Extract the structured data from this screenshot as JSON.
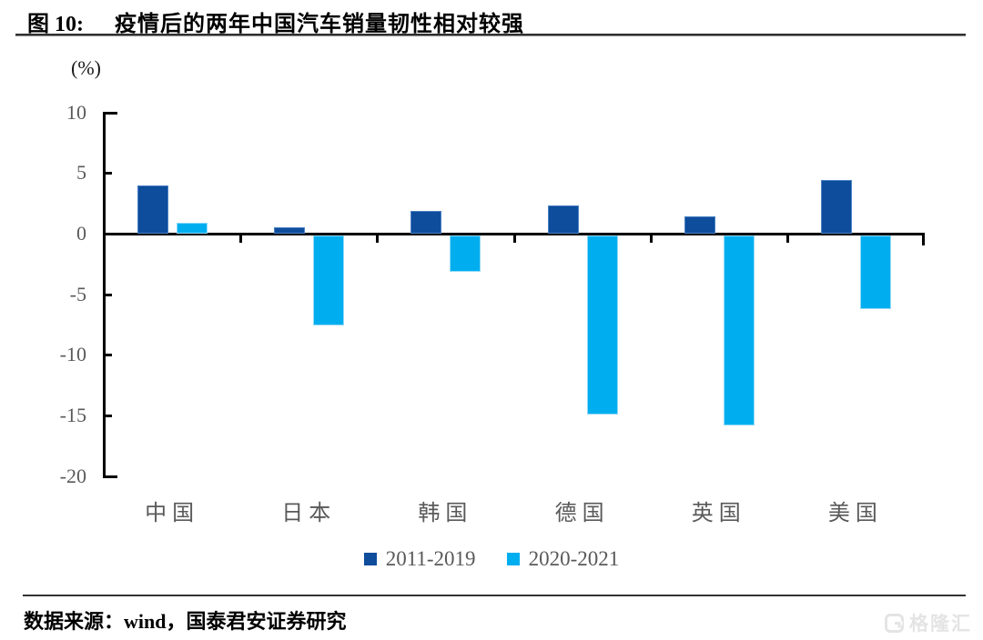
{
  "header": {
    "figure_label": "图 10:",
    "title": "疫情后的两年中国汽车销量韧性相对较强"
  },
  "footer": {
    "source": "数据来源：wind，国泰君安证券研究",
    "watermark": "格隆汇"
  },
  "chart_data": {
    "type": "bar",
    "title": "疫情后的两年中国汽车销量韧性相对较强",
    "unit_label": "(%)",
    "categories": [
      "中国",
      "日本",
      "韩国",
      "德国",
      "英国",
      "美国"
    ],
    "series": [
      {
        "name": "2011-2019",
        "color": "#0e4c9c",
        "values": [
          4.0,
          0.5,
          1.9,
          2.3,
          1.4,
          4.4
        ]
      },
      {
        "name": "2020-2021",
        "color": "#00aeef",
        "values": [
          0.9,
          -7.4,
          -3.0,
          -14.8,
          -15.7,
          -6.1
        ]
      }
    ],
    "ylim": [
      -20,
      10
    ],
    "yticks": [
      10,
      5,
      0,
      -5,
      -10,
      -15,
      -20
    ],
    "xlabel": "",
    "ylabel": "(%)",
    "legend_position": "bottom",
    "grid": false,
    "axis_color": "#000000",
    "tick_label_color": "#595959"
  }
}
